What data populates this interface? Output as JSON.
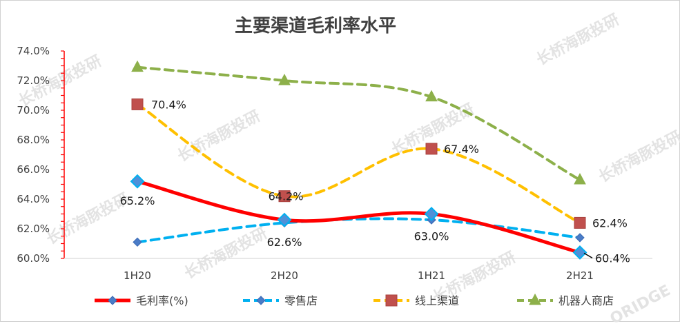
{
  "chart_data": {
    "type": "line",
    "title": "主要渠道毛利率水平",
    "categories": [
      "1H20",
      "2H20",
      "1H21",
      "2H21"
    ],
    "ylim": [
      60.0,
      74.0
    ],
    "y_ticks": [
      "60.0%",
      "62.0%",
      "64.0%",
      "66.0%",
      "68.0%",
      "70.0%",
      "72.0%",
      "74.0%"
    ],
    "grid": false,
    "legend_position": "bottom",
    "series": [
      {
        "name": "毛利率(%)",
        "values": [
          65.2,
          62.6,
          63.0,
          60.4
        ],
        "color": "#ff0000",
        "marker": "diamond",
        "line": "solid",
        "labels": [
          "65.2%",
          "62.6%",
          "63.0%",
          "60.4%"
        ]
      },
      {
        "name": "零售店",
        "values": [
          61.1,
          62.4,
          62.6,
          61.4
        ],
        "color": "#00b0f0",
        "marker": "diamond",
        "line": "dashed"
      },
      {
        "name": "线上渠道",
        "values": [
          70.4,
          64.2,
          67.4,
          62.4
        ],
        "color": "#ffc000",
        "marker": "square",
        "line": "dashed",
        "labels": [
          "70.4%",
          "64.2%",
          "67.4%",
          "62.4%"
        ]
      },
      {
        "name": "机器人商店",
        "values": [
          72.9,
          72.0,
          70.9,
          65.3
        ],
        "color": "#8db04a",
        "marker": "triangle",
        "line": "dashed"
      }
    ]
  },
  "watermark": "长桥海豚投研",
  "watermark_latin": "ORIDGE"
}
